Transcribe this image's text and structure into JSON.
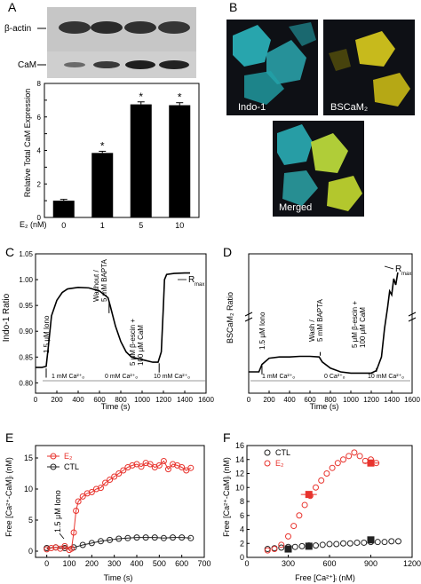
{
  "panels": {
    "A": "A",
    "B": "B",
    "C": "C",
    "D": "D",
    "E": "E",
    "F": "F"
  },
  "panel_a": {
    "blot_labels": {
      "actin": "β-actin",
      "cam": "CaM"
    },
    "star": "*",
    "y_axis_label": "Relative Total CaM Expression",
    "x_axis_label": "E₂ (nM)"
  },
  "panel_b": {
    "labels": {
      "indo": "Indo-1",
      "bscam": "BSCaM₂",
      "merged": "Merged"
    },
    "colors": {
      "indo": "#2bb6be",
      "bscam": "#d2c41c",
      "merged": "#b9d83a",
      "bg": "#0e1015"
    }
  },
  "panel_c": {
    "y_axis_label": "Indo-1 Ratio",
    "x_axis_label": "Time (s)",
    "annotations": {
      "iono": "1.5 μM Iono",
      "washout1": "Washout /",
      "washout2": "5 mM BAPTA",
      "escin1": "5 μM β-escin +",
      "escin2": "100 μM CaM",
      "rmax": "R",
      "rmax_sub": "max"
    },
    "bars": [
      "1 mM Ca²⁺ₒ",
      "0 mM Ca²⁺ₒ",
      "10 mM Ca²⁺ₒ"
    ]
  },
  "panel_d": {
    "y_axis_label": "BSCaM₂ Ratio",
    "x_axis_label": "Time (s)",
    "annotations": {
      "iono": "1.5 μM Iono",
      "wash1": "Wash /",
      "wash2": "5 mM BAPTA",
      "escin1": "5 μM β-escin +",
      "escin2": "100 μM CaM",
      "rmax": "R",
      "rmax_sub": "max"
    },
    "bars": [
      "1 mM Ca²⁺ₒ",
      "0 Ca²⁺ₒ",
      "10 mM Ca²⁺ₒ"
    ]
  },
  "panel_e": {
    "y_axis_label": "Free [Ca²⁺-CaM]ᵢ (nM)",
    "x_axis_label": "Time (s)",
    "legend": [
      "E₂",
      "CTL"
    ],
    "annotation": "1.5 μM Iono",
    "colors": {
      "e2": "#e8332d",
      "ctl": "#222222"
    }
  },
  "panel_f": {
    "y_axis_label": "Free [Ca²⁺-CaM]ᵢ (nM)",
    "x_axis_label": "Free [Ca²⁺]ᵢ (nM)",
    "legend": [
      "CTL",
      "E₂"
    ],
    "colors": {
      "e2": "#e8332d",
      "ctl": "#222222"
    }
  },
  "chart_data": [
    {
      "panel": "A",
      "type": "bar",
      "categories": [
        "0",
        "1",
        "5",
        "10"
      ],
      "values": [
        1.0,
        3.85,
        6.75,
        6.7
      ],
      "errors": [
        0.08,
        0.1,
        0.15,
        0.15
      ],
      "significant": [
        false,
        true,
        true,
        true
      ],
      "ylim": [
        0,
        8
      ],
      "yticks": [
        0,
        1,
        2,
        3,
        4,
        5,
        6,
        7,
        8
      ],
      "ylabel": "Relative Total CaM Expression",
      "xlabel": "E₂ (nM)"
    },
    {
      "panel": "C",
      "type": "line",
      "x": [
        0,
        60,
        100,
        120,
        150,
        200,
        250,
        300,
        400,
        500,
        600,
        680,
        700,
        750,
        800,
        850,
        900,
        1000,
        1100,
        1150,
        1180,
        1200,
        1210,
        1230,
        1300,
        1400,
        1450
      ],
      "y": [
        0.83,
        0.83,
        0.832,
        0.87,
        0.93,
        0.96,
        0.975,
        0.982,
        0.985,
        0.984,
        0.978,
        0.965,
        0.95,
        0.91,
        0.88,
        0.86,
        0.85,
        0.845,
        0.84,
        0.84,
        0.86,
        0.95,
        1.0,
        1.01,
        1.012,
        1.013,
        1.013
      ],
      "xlim": [
        0,
        1600
      ],
      "xticks": [
        0,
        200,
        400,
        600,
        800,
        1000,
        1200,
        1400,
        1600
      ],
      "ylim": [
        0.78,
        1.05
      ],
      "yticks": [
        0.8,
        0.85,
        0.9,
        0.95,
        1.0,
        1.05
      ],
      "xlabel": "Time (s)",
      "ylabel": "Indo-1 Ratio"
    },
    {
      "panel": "D",
      "type": "line",
      "x": [
        0,
        100,
        130,
        200,
        300,
        400,
        500,
        600,
        690,
        720,
        800,
        900,
        1000,
        1100,
        1200,
        1250,
        1300,
        1330,
        1360,
        1380,
        1400,
        1420,
        1440,
        1460
      ],
      "y": [
        0.1,
        0.1,
        0.16,
        0.21,
        0.22,
        0.22,
        0.225,
        0.225,
        0.22,
        0.18,
        0.13,
        0.1,
        0.09,
        0.09,
        0.09,
        0.11,
        0.22,
        0.45,
        0.62,
        0.75,
        0.72,
        0.85,
        0.8,
        0.9
      ],
      "xlim": [
        0,
        1600
      ],
      "xticks": [
        0,
        200,
        400,
        600,
        800,
        1000,
        1200,
        1400,
        1600
      ],
      "xlabel": "Time (s)",
      "ylabel": "BSCaM₂ Ratio"
    },
    {
      "panel": "E",
      "type": "scatter",
      "series": [
        {
          "name": "E₂",
          "x": [
            0,
            20,
            40,
            60,
            80,
            100,
            110,
            120,
            130,
            140,
            160,
            180,
            200,
            220,
            240,
            260,
            280,
            300,
            320,
            340,
            360,
            380,
            400,
            420,
            440,
            460,
            480,
            500,
            520,
            540,
            560,
            580,
            600,
            620,
            640
          ],
          "y": [
            0.3,
            0.5,
            0.6,
            0.4,
            0.8,
            0.2,
            0.4,
            3.0,
            6.5,
            8.0,
            8.8,
            9.3,
            9.5,
            10.0,
            10.2,
            11.0,
            11.5,
            12.0,
            12.5,
            13.0,
            13.5,
            13.8,
            14.0,
            13.6,
            14.2,
            14.0,
            13.5,
            13.8,
            14.5,
            13.2,
            14.0,
            13.8,
            13.5,
            13.0,
            13.4
          ]
        },
        {
          "name": "CTL",
          "x": [
            0,
            40,
            80,
            120,
            160,
            200,
            240,
            280,
            320,
            360,
            400,
            440,
            480,
            520,
            560,
            600,
            640
          ],
          "y": [
            0.5,
            0.6,
            0.5,
            0.6,
            1.0,
            1.3,
            1.6,
            1.8,
            2.0,
            2.1,
            2.2,
            2.2,
            2.2,
            2.1,
            2.2,
            2.2,
            2.1
          ]
        }
      ],
      "xlim": [
        -50,
        700
      ],
      "xticks": [
        0,
        100,
        200,
        300,
        400,
        500,
        600,
        700
      ],
      "ylim": [
        -1,
        17
      ],
      "yticks": [
        0,
        5,
        10,
        15
      ],
      "xlabel": "Time (s)",
      "ylabel": "Free [Ca²⁺-CaM]ᵢ (nM)"
    },
    {
      "panel": "F",
      "type": "scatter",
      "series": [
        {
          "name": "CTL",
          "x": [
            150,
            200,
            250,
            300,
            350,
            400,
            450,
            500,
            550,
            600,
            650,
            700,
            750,
            800,
            850,
            900,
            950,
            1000,
            1050,
            1100
          ],
          "y": [
            1.2,
            1.3,
            1.4,
            1.5,
            1.5,
            1.6,
            1.7,
            1.7,
            1.8,
            1.9,
            1.9,
            2.0,
            2.0,
            2.1,
            2.1,
            2.2,
            2.2,
            2.2,
            2.3,
            2.3
          ],
          "means": [
            {
              "x": 300,
              "y": 1.2
            },
            {
              "x": 450,
              "y": 1.6
            },
            {
              "x": 900,
              "y": 2.5
            }
          ]
        },
        {
          "name": "E₂",
          "x": [
            150,
            200,
            250,
            300,
            340,
            380,
            420,
            460,
            500,
            540,
            580,
            620,
            660,
            700,
            740,
            780,
            820,
            860,
            900,
            940
          ],
          "y": [
            1.0,
            1.2,
            1.8,
            3.0,
            4.5,
            6.0,
            7.5,
            8.8,
            10.0,
            11.0,
            12.0,
            12.8,
            13.5,
            14.0,
            14.5,
            15.0,
            14.5,
            13.8,
            14.0,
            13.5
          ],
          "means": [
            {
              "x": 450,
              "y": 9.0
            },
            {
              "x": 900,
              "y": 13.5
            }
          ]
        }
      ],
      "xlim": [
        0,
        1200
      ],
      "xticks": [
        0,
        300,
        600,
        900,
        1200
      ],
      "ylim": [
        0,
        16
      ],
      "yticks": [
        0,
        2,
        4,
        6,
        8,
        10,
        12,
        14,
        16
      ],
      "xlabel": "Free [Ca²⁺]ᵢ (nM)",
      "ylabel": "Free [Ca²⁺-CaM]ᵢ (nM)"
    }
  ]
}
